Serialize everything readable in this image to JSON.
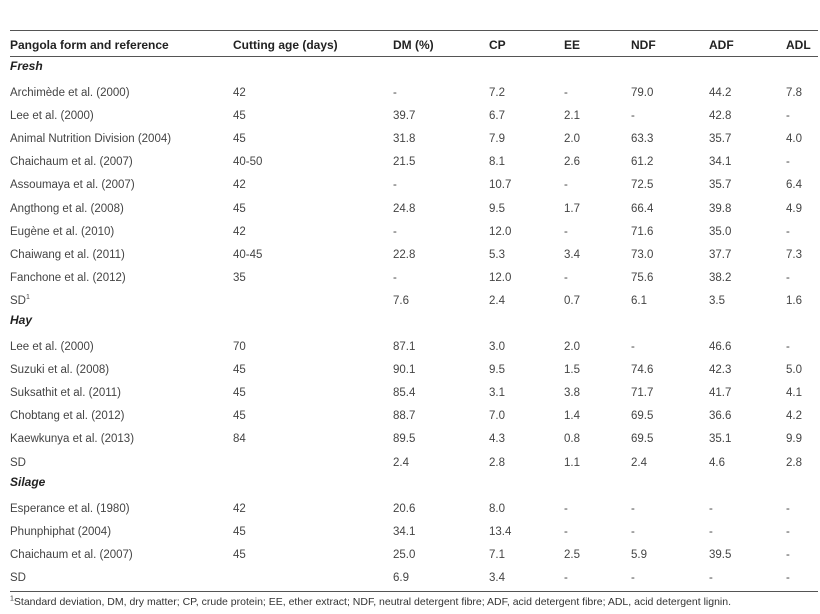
{
  "columns": [
    "Pangola form and reference",
    "Cutting age (days)",
    "DM (%)",
    "CP",
    "EE",
    "NDF",
    "ADF",
    "ADL"
  ],
  "sections": [
    {
      "title": "Fresh",
      "rows": [
        [
          "Archimède et al. (2000)",
          "42",
          "-",
          "7.2",
          "-",
          "79.0",
          "44.2",
          "7.8"
        ],
        [
          "Lee et al. (2000)",
          "45",
          "39.7",
          "6.7",
          "2.1",
          "-",
          "42.8",
          "-"
        ],
        [
          "Animal Nutrition Division (2004)",
          "45",
          "31.8",
          "7.9",
          "2.0",
          "63.3",
          "35.7",
          "4.0"
        ],
        [
          "Chaichaum et al. (2007)",
          "40-50",
          "21.5",
          "8.1",
          "2.6",
          "61.2",
          "34.1",
          "-"
        ],
        [
          "Assoumaya et al. (2007)",
          "42",
          "-",
          "10.7",
          "-",
          "72.5",
          "35.7",
          "6.4"
        ],
        [
          "Angthong et al. (2008)",
          "45",
          "24.8",
          "9.5",
          "1.7",
          "66.4",
          "39.8",
          "4.9"
        ],
        [
          "Eugène et al. (2010)",
          "42",
          "-",
          "12.0",
          "-",
          "71.6",
          "35.0",
          "-"
        ],
        [
          "Chaiwang et al. (2011)",
          "40-45",
          "22.8",
          "5.3",
          "3.4",
          "73.0",
          "37.7",
          "7.3"
        ],
        [
          "Fanchone et al. (2012)",
          "35",
          "-",
          "12.0",
          "-",
          "75.6",
          "38.2",
          "-"
        ],
        [
          "SD",
          "",
          "7.6",
          "2.4",
          "0.7",
          "6.1",
          "3.5",
          "1.6"
        ]
      ]
    },
    {
      "title": "Hay",
      "rows": [
        [
          "Lee et al. (2000)",
          "70",
          "87.1",
          "3.0",
          "2.0",
          "-",
          "46.6",
          "-"
        ],
        [
          "Suzuki et al. (2008)",
          "45",
          "90.1",
          "9.5",
          "1.5",
          "74.6",
          "42.3",
          "5.0"
        ],
        [
          "Suksathit et al. (2011)",
          "45",
          "85.4",
          "3.1",
          "3.8",
          "71.7",
          "41.7",
          "4.1"
        ],
        [
          "Chobtang et al. (2012)",
          "45",
          "88.7",
          "7.0",
          "1.4",
          "69.5",
          "36.6",
          "4.2"
        ],
        [
          "Kaewkunya et al. (2013)",
          "84",
          "89.5",
          "4.3",
          "0.8",
          "69.5",
          "35.1",
          "9.9"
        ],
        [
          "SD",
          "",
          "2.4",
          "2.8",
          "1.1",
          "2.4",
          "4.6",
          "2.8"
        ]
      ]
    },
    {
      "title": "Silage",
      "rows": [
        [
          "Esperance et al. (1980)",
          "42",
          "20.6",
          "8.0",
          "-",
          "-",
          "-",
          "-"
        ],
        [
          "Phunphiphat (2004)",
          "45",
          "34.1",
          "13.4",
          "-",
          "-",
          "-",
          "-"
        ],
        [
          "Chaichaum et al. (2007)",
          "45",
          "25.0",
          "7.1",
          "2.5",
          "5.9",
          "39.5",
          "-"
        ],
        [
          "SD",
          "",
          "6.9",
          "3.4",
          "-",
          "-",
          "-",
          "-"
        ]
      ]
    }
  ],
  "sd_footnote_mark": "1",
  "footnote": {
    "mark": "1",
    "text": "Standard deviation, DM, dry matter; CP, crude protein; EE, ether extract; NDF, neutral detergent fibre; ADF, acid detergent fibre; ADL, acid detergent lignin."
  }
}
